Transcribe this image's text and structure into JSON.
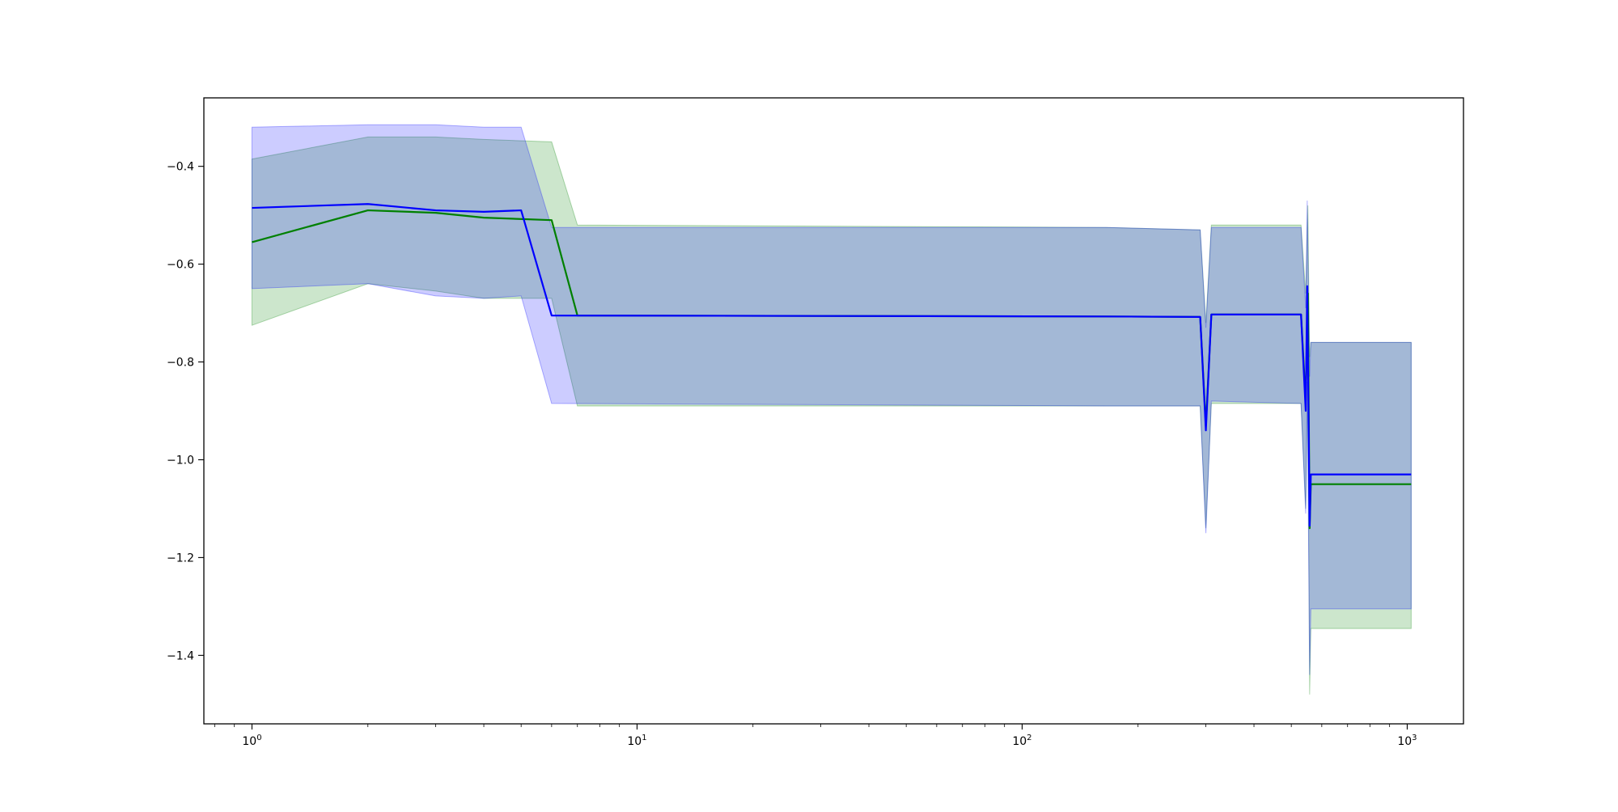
{
  "chart_data": {
    "type": "line",
    "title": "",
    "xlabel": "",
    "ylabel": "",
    "xscale": "log",
    "xlim": [
      0.75,
      1400
    ],
    "ylim": [
      -1.54,
      -0.26
    ],
    "grid": false,
    "x_ticks": [
      {
        "value": 1,
        "base": "10",
        "exp": "0"
      },
      {
        "value": 10,
        "base": "10",
        "exp": "1"
      },
      {
        "value": 100,
        "base": "10",
        "exp": "2"
      },
      {
        "value": 1000,
        "base": "10",
        "exp": "3"
      }
    ],
    "y_ticks": [
      {
        "value": -0.4,
        "label": "−0.4"
      },
      {
        "value": -0.6,
        "label": "−0.6"
      },
      {
        "value": -0.8,
        "label": "−0.8"
      },
      {
        "value": -1.0,
        "label": "−1.0"
      },
      {
        "value": -1.2,
        "label": "−1.2"
      },
      {
        "value": -1.4,
        "label": "−1.4"
      }
    ],
    "series": [
      {
        "color": "#008000",
        "band_color": "#008000",
        "points": [
          {
            "x": 1,
            "y": -0.555,
            "lo": -0.725,
            "hi": -0.385
          },
          {
            "x": 2,
            "y": -0.49,
            "lo": -0.64,
            "hi": -0.34
          },
          {
            "x": 3,
            "y": -0.495,
            "lo": -0.655,
            "hi": -0.34
          },
          {
            "x": 4,
            "y": -0.505,
            "lo": -0.67,
            "hi": -0.345
          },
          {
            "x": 6,
            "y": -0.51,
            "lo": -0.67,
            "hi": -0.35
          },
          {
            "x": 7,
            "y": -0.705,
            "lo": -0.89,
            "hi": -0.52
          },
          {
            "x": 165,
            "y": -0.707,
            "lo": -0.89,
            "hi": -0.525
          },
          {
            "x": 290,
            "y": -0.708,
            "lo": -0.89,
            "hi": -0.53
          },
          {
            "x": 300,
            "y": -0.93,
            "lo": -1.14,
            "hi": -0.72
          },
          {
            "x": 310,
            "y": -0.703,
            "lo": -0.885,
            "hi": -0.52
          },
          {
            "x": 530,
            "y": -0.703,
            "lo": -0.885,
            "hi": -0.52
          },
          {
            "x": 545,
            "y": -0.88,
            "lo": -1.1,
            "hi": -0.66
          },
          {
            "x": 552,
            "y": -0.66,
            "lo": -0.85,
            "hi": -0.48
          },
          {
            "x": 558,
            "y": -1.14,
            "lo": -1.48,
            "hi": -0.79
          },
          {
            "x": 562,
            "y": -1.05,
            "lo": -1.345,
            "hi": -0.76
          },
          {
            "x": 1024,
            "y": -1.05,
            "lo": -1.345,
            "hi": -0.76
          }
        ]
      },
      {
        "color": "#0000ff",
        "band_color": "#0000ff",
        "points": [
          {
            "x": 1,
            "y": -0.485,
            "lo": -0.65,
            "hi": -0.32
          },
          {
            "x": 2,
            "y": -0.477,
            "lo": -0.64,
            "hi": -0.315
          },
          {
            "x": 3,
            "y": -0.49,
            "lo": -0.665,
            "hi": -0.315
          },
          {
            "x": 4,
            "y": -0.493,
            "lo": -0.67,
            "hi": -0.32
          },
          {
            "x": 5,
            "y": -0.49,
            "lo": -0.665,
            "hi": -0.32
          },
          {
            "x": 6,
            "y": -0.705,
            "lo": -0.885,
            "hi": -0.525
          },
          {
            "x": 165,
            "y": -0.707,
            "lo": -0.89,
            "hi": -0.525
          },
          {
            "x": 290,
            "y": -0.708,
            "lo": -0.89,
            "hi": -0.53
          },
          {
            "x": 300,
            "y": -0.94,
            "lo": -1.15,
            "hi": -0.73
          },
          {
            "x": 310,
            "y": -0.703,
            "lo": -0.88,
            "hi": -0.525
          },
          {
            "x": 530,
            "y": -0.703,
            "lo": -0.885,
            "hi": -0.525
          },
          {
            "x": 545,
            "y": -0.9,
            "lo": -1.11,
            "hi": -0.69
          },
          {
            "x": 550,
            "y": -0.645,
            "lo": -0.84,
            "hi": -0.47
          },
          {
            "x": 558,
            "y": -1.135,
            "lo": -1.44,
            "hi": -0.83
          },
          {
            "x": 562,
            "y": -1.03,
            "lo": -1.305,
            "hi": -0.76
          },
          {
            "x": 1024,
            "y": -1.03,
            "lo": -1.305,
            "hi": -0.76
          }
        ]
      }
    ]
  }
}
